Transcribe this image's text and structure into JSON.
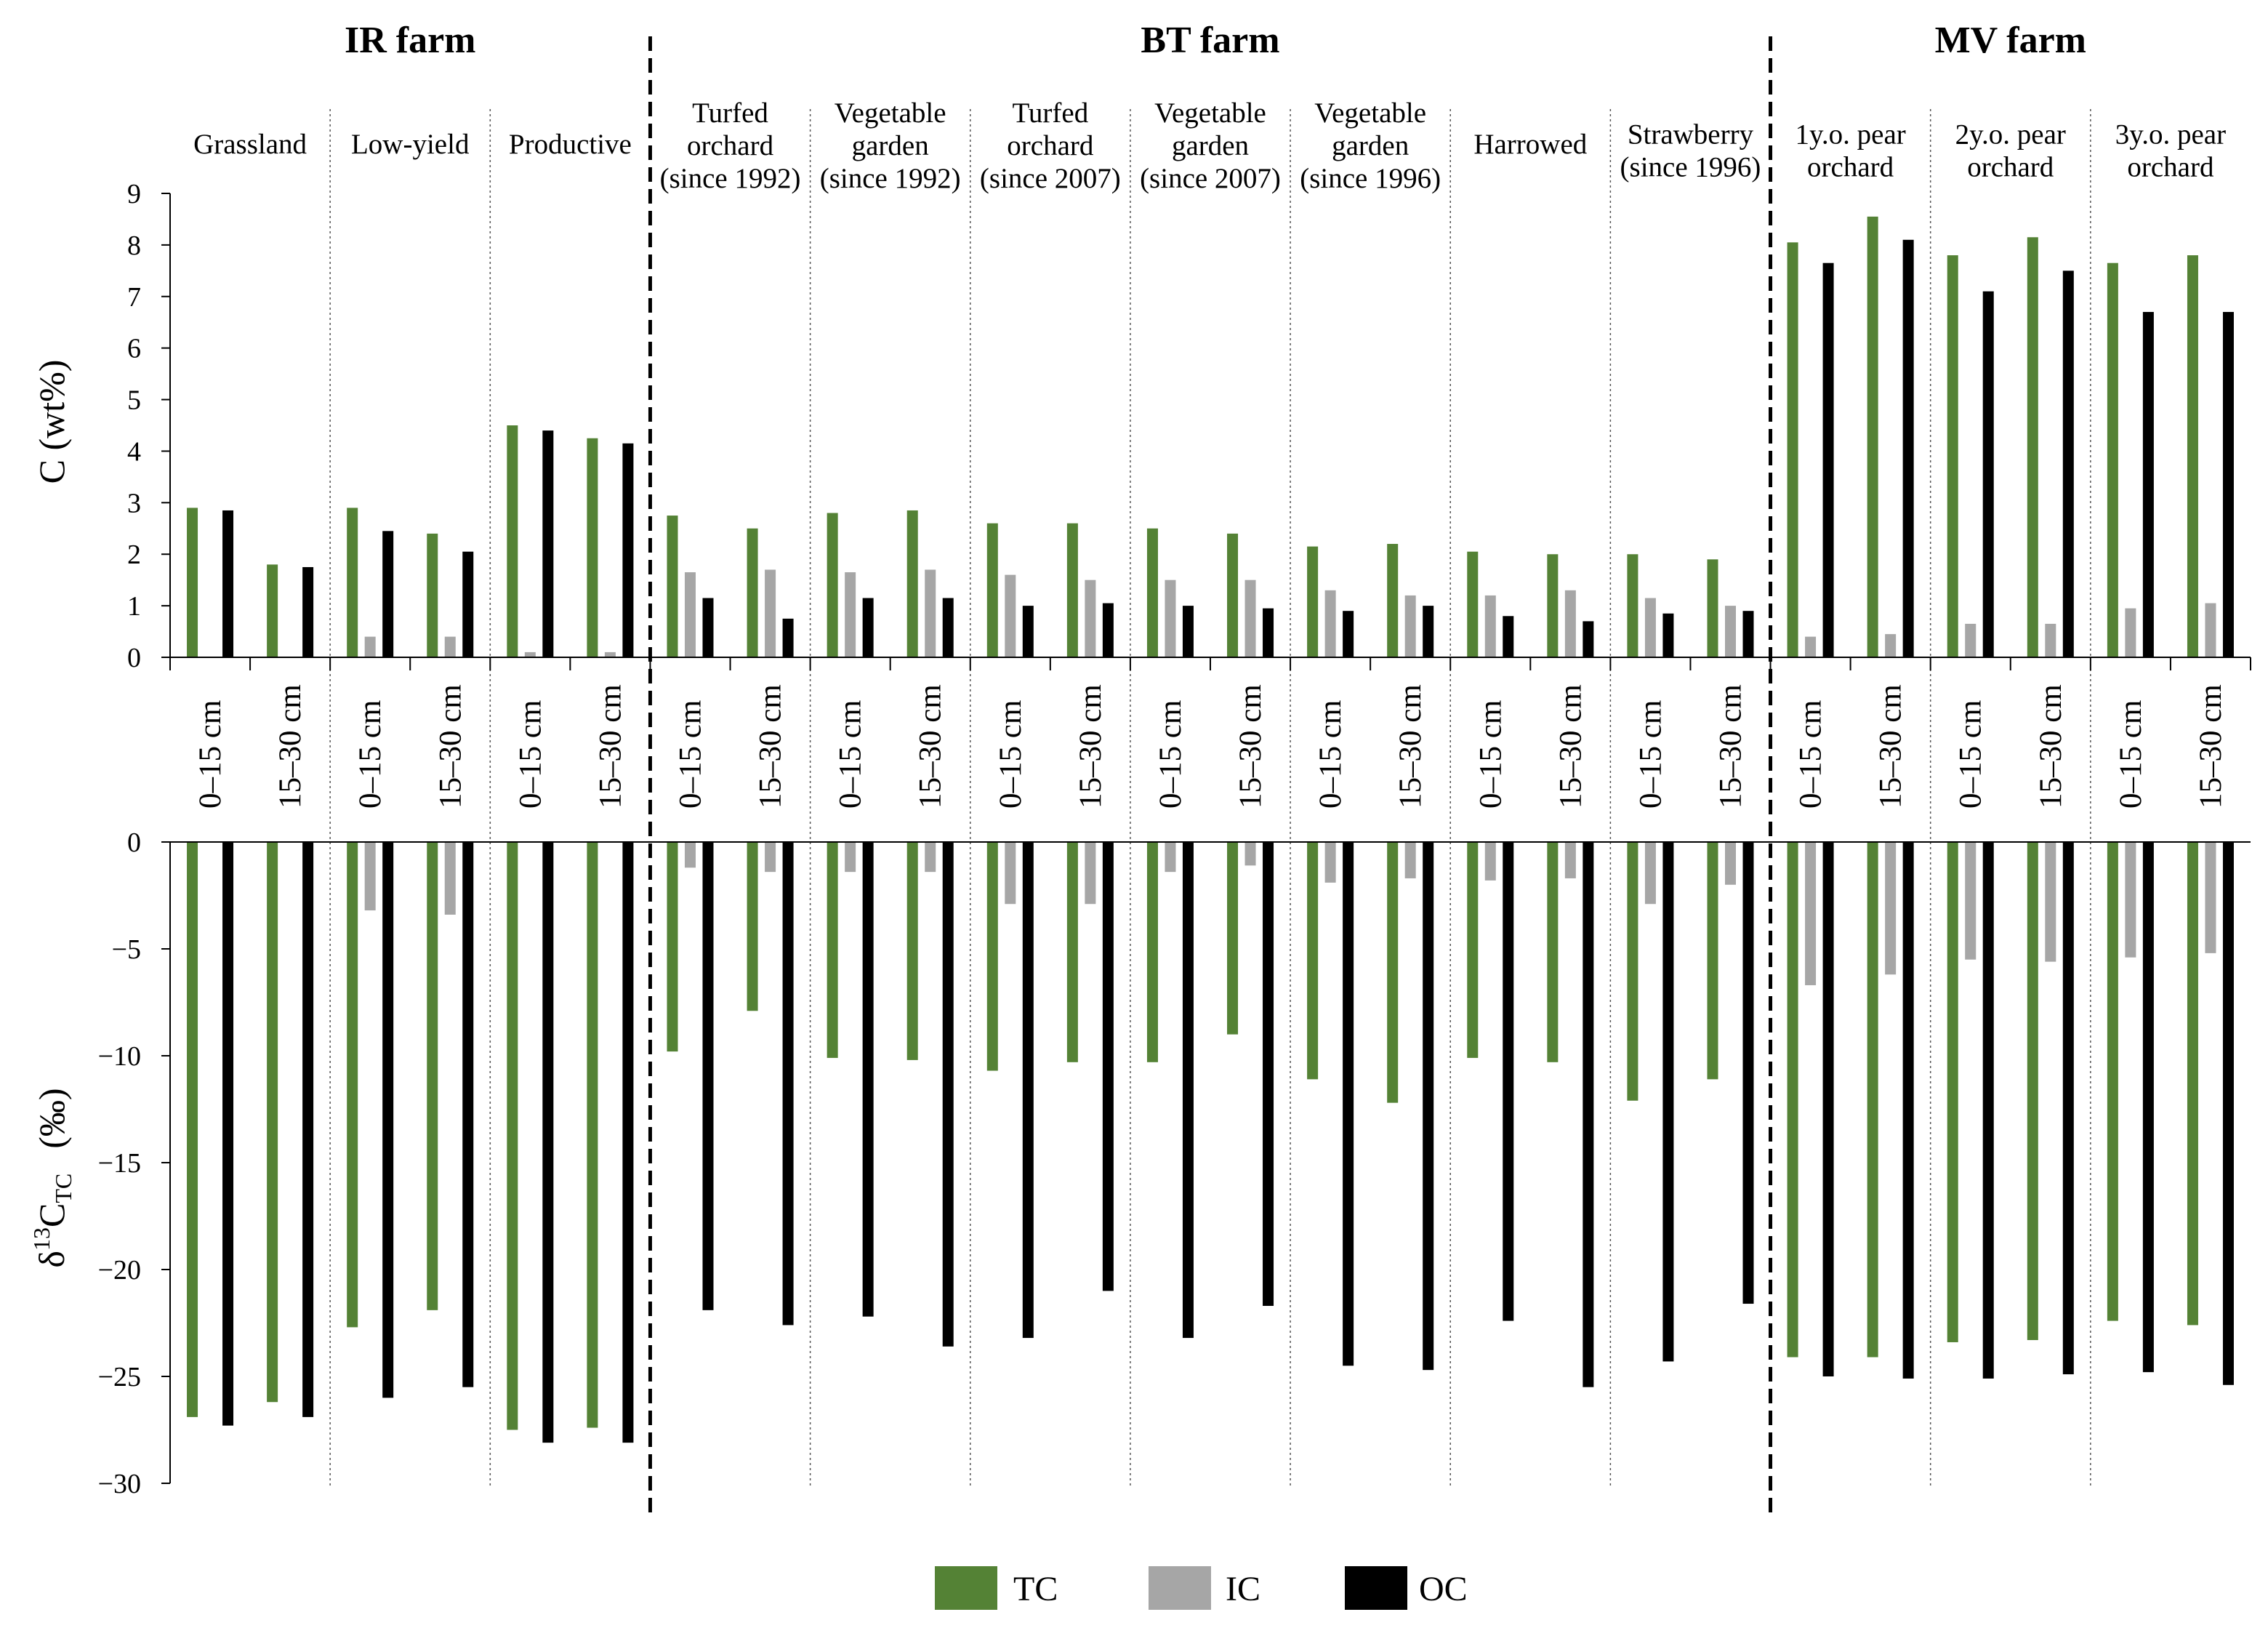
{
  "chart_data": {
    "type": "bar",
    "farms": [
      {
        "label": "IR farm",
        "group_count": 3
      },
      {
        "label": "BT farm",
        "group_count": 7
      },
      {
        "label": "MV farm",
        "group_count": 3
      }
    ],
    "groups": [
      {
        "lines": [
          "Grassland"
        ]
      },
      {
        "lines": [
          "Low-yield"
        ]
      },
      {
        "lines": [
          "Productive"
        ]
      },
      {
        "lines": [
          "Turfed",
          "orchard",
          "(since 1992)"
        ]
      },
      {
        "lines": [
          "Vegetable",
          "garden",
          "(since 1992)"
        ]
      },
      {
        "lines": [
          "Turfed",
          "orchard",
          "(since 2007)"
        ]
      },
      {
        "lines": [
          "Vegetable",
          "garden",
          "(since 2007)"
        ]
      },
      {
        "lines": [
          "Vegetable",
          "garden",
          "(since 1996)"
        ]
      },
      {
        "lines": [
          "Harrowed"
        ]
      },
      {
        "lines": [
          "Strawberry",
          "(since 1996)"
        ]
      },
      {
        "lines": [
          "1y.o. pear",
          "orchard"
        ]
      },
      {
        "lines": [
          "2y.o. pear",
          "orchard"
        ]
      },
      {
        "lines": [
          "3y.o. pear",
          "orchard"
        ]
      }
    ],
    "depths": [
      "0–15 cm",
      "15–30 cm"
    ],
    "series": [
      {
        "name": "TC",
        "color": "#548235"
      },
      {
        "name": "IC",
        "color": "#a6a6a6"
      },
      {
        "name": "OC",
        "color": "#000000"
      }
    ],
    "panels": [
      {
        "ylabel": "C (wt%)",
        "ylim": [
          0,
          9
        ],
        "yticks": [
          0,
          1,
          2,
          3,
          4,
          5,
          6,
          7,
          8,
          9
        ],
        "ytick_labels": [
          "0",
          "1",
          "2",
          "3",
          "4",
          "5",
          "6",
          "7",
          "8",
          "9"
        ],
        "values": [
          [
            2.9,
            1.8,
            2.9,
            2.4,
            4.5,
            4.25,
            2.75,
            2.5,
            2.8,
            2.85,
            2.6,
            2.6,
            2.5,
            2.4,
            2.15,
            2.2,
            2.05,
            2.0,
            2.0,
            1.9,
            8.05,
            8.55,
            7.8,
            8.15,
            7.65,
            7.8
          ],
          [
            null,
            null,
            0.4,
            0.4,
            0.1,
            0.1,
            1.65,
            1.7,
            1.65,
            1.7,
            1.6,
            1.5,
            1.5,
            1.5,
            1.3,
            1.2,
            1.2,
            1.3,
            1.15,
            1.0,
            0.4,
            0.45,
            0.65,
            0.65,
            0.95,
            1.05
          ],
          [
            2.85,
            1.75,
            2.45,
            2.05,
            4.4,
            4.15,
            1.15,
            0.75,
            1.15,
            1.15,
            1.0,
            1.05,
            1.0,
            0.95,
            0.9,
            1.0,
            0.8,
            0.7,
            0.85,
            0.9,
            7.65,
            8.1,
            7.1,
            7.5,
            6.7,
            6.7
          ]
        ]
      },
      {
        "ylabel": {
          "delta": "δ",
          "sup": "13",
          "element": "C",
          "sub": "TC",
          "unit": "(‰)"
        },
        "ylim": [
          -30,
          0
        ],
        "yticks": [
          0,
          -5,
          -10,
          -15,
          -20,
          -25,
          -30
        ],
        "ytick_labels": [
          "0",
          "−5",
          "−10",
          "−15",
          "−20",
          "−25",
          "−30"
        ],
        "values": [
          [
            -26.9,
            -26.2,
            -22.7,
            -21.9,
            -27.5,
            -27.4,
            -9.8,
            -7.9,
            -10.1,
            -10.2,
            -10.7,
            -10.3,
            -10.3,
            -9.0,
            -11.1,
            -12.2,
            -10.1,
            -10.3,
            -12.1,
            -11.1,
            -24.1,
            -24.1,
            -23.4,
            -23.3,
            -22.4,
            -22.6
          ],
          [
            null,
            null,
            -3.2,
            -3.4,
            null,
            null,
            -1.2,
            -1.4,
            -1.4,
            -1.4,
            -2.9,
            -2.9,
            -1.4,
            -1.1,
            -1.9,
            -1.7,
            -1.8,
            -1.7,
            -2.9,
            -2.0,
            -6.7,
            -6.2,
            -5.5,
            -5.6,
            -5.4,
            -5.2
          ],
          [
            -27.3,
            -26.9,
            -26.0,
            -25.5,
            -28.1,
            -28.1,
            -21.9,
            -22.6,
            -22.2,
            -23.6,
            -23.2,
            -21.0,
            -23.2,
            -21.7,
            -24.5,
            -24.7,
            -22.4,
            -25.5,
            -24.3,
            -21.6,
            -25.0,
            -25.1,
            -25.1,
            -24.9,
            -24.8,
            -25.4
          ]
        ]
      }
    ]
  }
}
